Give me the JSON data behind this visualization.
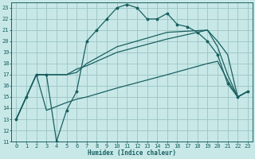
{
  "xlabel": "Humidex (Indice chaleur)",
  "xlim": [
    -0.5,
    23.5
  ],
  "ylim": [
    11,
    23.5
  ],
  "yticks": [
    11,
    12,
    13,
    14,
    15,
    16,
    17,
    18,
    19,
    20,
    21,
    22,
    23
  ],
  "xticks": [
    0,
    1,
    2,
    3,
    4,
    5,
    6,
    7,
    8,
    9,
    10,
    11,
    12,
    13,
    14,
    15,
    16,
    17,
    18,
    19,
    20,
    21,
    22,
    23
  ],
  "bg_color": "#c8e8e8",
  "grid_color": "#a0c8c8",
  "line_color": "#1a6060",
  "line1_x": [
    0,
    1,
    2,
    3,
    4,
    5,
    6,
    7,
    8,
    9,
    10,
    11,
    12,
    13,
    14,
    15,
    16,
    17,
    18,
    19,
    20,
    21,
    22,
    23
  ],
  "line1_y": [
    13,
    15,
    17,
    17,
    11,
    13.8,
    15.5,
    20,
    21,
    22,
    23,
    23.3,
    23,
    22,
    22,
    22.5,
    21.5,
    21.3,
    20.8,
    20,
    18.8,
    16.2,
    15,
    15.5
  ],
  "line2_x": [
    0,
    2,
    3,
    5,
    6,
    7,
    10,
    15,
    19,
    20,
    21,
    22,
    23
  ],
  "line2_y": [
    13,
    17,
    17,
    17,
    17.2,
    18,
    19.5,
    20.8,
    21,
    20,
    18.8,
    15,
    15.5
  ],
  "line3_x": [
    0,
    2,
    3,
    5,
    6,
    7,
    10,
    15,
    19,
    20,
    21,
    22,
    23
  ],
  "line3_y": [
    13,
    17,
    17,
    17,
    17.5,
    17.8,
    19,
    20.2,
    21,
    19.5,
    17,
    15,
    15.5
  ],
  "line4_x": [
    0,
    2,
    3,
    5,
    6,
    7,
    10,
    15,
    19,
    20,
    21,
    22,
    23
  ],
  "line4_y": [
    13,
    17,
    13.8,
    14.5,
    14.8,
    15,
    15.8,
    17,
    18,
    18.2,
    16.5,
    15,
    15.5
  ]
}
